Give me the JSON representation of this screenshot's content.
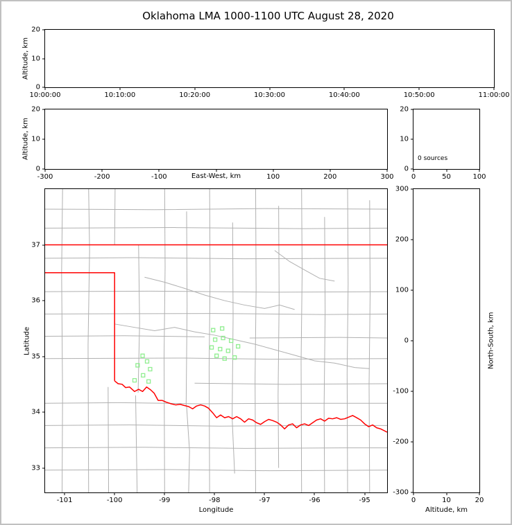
{
  "title": "Oklahoma LMA 1000-1100 UTC August 28, 2020",
  "colors": {
    "state_boundary": "#ff0000",
    "county_lines": "#b0b0b0",
    "stations": "#90ee90",
    "axes": "#000000",
    "figure_border": "#c0c0c0"
  },
  "panels": {
    "time_height": {
      "ylabel": "Altitude, km",
      "yticks": [
        "0",
        "10",
        "20"
      ],
      "xticks": [
        "10:00:00",
        "10:10:00",
        "10:20:00",
        "10:30:00",
        "10:40:00",
        "10:50:00",
        "11:00:00"
      ]
    },
    "ew_height": {
      "ylabel": "Altitude, km",
      "xlabel": "East-West, km",
      "yticks": [
        "0",
        "10",
        "20"
      ],
      "xticks": [
        "-300",
        "-200",
        "-100",
        "0",
        "100",
        "200",
        "300"
      ]
    },
    "histogram": {
      "annotation": "0 sources",
      "yticks": [
        "0",
        "10",
        "20"
      ],
      "xticks": [
        "0",
        "50",
        "100"
      ]
    },
    "map": {
      "xlabel": "Longitude",
      "ylabel": "Latitude",
      "xticks": [
        "-101",
        "-100",
        "-99",
        "-98",
        "-97",
        "-96",
        "-95"
      ],
      "yticks": [
        "33",
        "34",
        "35",
        "36",
        "37"
      ]
    },
    "ns_height": {
      "ylabel": "North-South, km",
      "xlabel": "Altitude, km",
      "yticks": [
        "-300",
        "-200",
        "-100",
        "0",
        "100",
        "200",
        "300"
      ],
      "xticks": [
        "0",
        "10",
        "20"
      ]
    }
  },
  "chart_data": [
    {
      "type": "scatter",
      "panel": "time_height",
      "ylabel": "Altitude, km",
      "ylim": [
        0,
        20
      ],
      "x_range": [
        "10:00:00",
        "11:00:00"
      ],
      "points": []
    },
    {
      "type": "scatter",
      "panel": "east_west_height",
      "xlabel": "East-West, km",
      "ylabel": "Altitude, km",
      "xlim": [
        -300,
        300
      ],
      "ylim": [
        0,
        20
      ],
      "points": []
    },
    {
      "type": "histogram",
      "panel": "source_counts",
      "xlim": [
        0,
        100
      ],
      "ylim": [
        0,
        20
      ],
      "annotation": "0 sources",
      "values": []
    },
    {
      "type": "map",
      "panel": "plan_view",
      "xlabel": "Longitude",
      "ylabel": "Latitude",
      "xlim": [
        -101.39,
        -94.55
      ],
      "ylim": [
        32.56,
        38.0
      ],
      "xticks": [
        -101,
        -100,
        -99,
        -98,
        -97,
        -96,
        -95
      ],
      "yticks": [
        33,
        34,
        35,
        36,
        37
      ],
      "stations": [
        [
          -99.44,
          35.01
        ],
        [
          -99.35,
          34.91
        ],
        [
          -99.54,
          34.84
        ],
        [
          -99.29,
          34.77
        ],
        [
          -99.43,
          34.66
        ],
        [
          -99.6,
          34.57
        ],
        [
          -99.32,
          34.55
        ],
        [
          -98.03,
          35.47
        ],
        [
          -97.85,
          35.5
        ],
        [
          -97.99,
          35.3
        ],
        [
          -97.83,
          35.33
        ],
        [
          -97.67,
          35.28
        ],
        [
          -98.06,
          35.16
        ],
        [
          -97.89,
          35.13
        ],
        [
          -97.73,
          35.1
        ],
        [
          -97.53,
          35.18
        ],
        [
          -97.96,
          35.01
        ],
        [
          -97.8,
          34.96
        ],
        [
          -97.6,
          34.98
        ]
      ],
      "state_boundary": [
        [
          [
            -101.39,
            37.0
          ],
          [
            -94.55,
            37.0
          ]
        ],
        [
          [
            -101.39,
            36.5
          ],
          [
            -100.0,
            36.5
          ],
          [
            -100.0,
            34.56
          ]
        ],
        [
          [
            -100.0,
            34.56
          ],
          [
            -99.93,
            34.51
          ],
          [
            -99.85,
            34.5
          ],
          [
            -99.78,
            34.44
          ],
          [
            -99.7,
            34.45
          ],
          [
            -99.6,
            34.37
          ],
          [
            -99.52,
            34.41
          ],
          [
            -99.44,
            34.37
          ],
          [
            -99.36,
            34.45
          ],
          [
            -99.28,
            34.4
          ],
          [
            -99.21,
            34.34
          ],
          [
            -99.13,
            34.21
          ],
          [
            -99.05,
            34.21
          ],
          [
            -98.97,
            34.18
          ],
          [
            -98.87,
            34.15
          ],
          [
            -98.78,
            34.13
          ],
          [
            -98.69,
            34.14
          ],
          [
            -98.61,
            34.12
          ],
          [
            -98.52,
            34.1
          ],
          [
            -98.44,
            34.06
          ],
          [
            -98.36,
            34.11
          ],
          [
            -98.28,
            34.13
          ],
          [
            -98.2,
            34.11
          ],
          [
            -98.12,
            34.07
          ],
          [
            -98.04,
            33.99
          ],
          [
            -97.96,
            33.9
          ],
          [
            -97.88,
            33.95
          ],
          [
            -97.8,
            33.9
          ],
          [
            -97.72,
            33.92
          ],
          [
            -97.64,
            33.88
          ],
          [
            -97.56,
            33.92
          ],
          [
            -97.48,
            33.88
          ],
          [
            -97.4,
            33.82
          ],
          [
            -97.32,
            33.88
          ],
          [
            -97.24,
            33.86
          ],
          [
            -97.16,
            33.81
          ],
          [
            -97.08,
            33.78
          ],
          [
            -97.0,
            33.83
          ],
          [
            -96.92,
            33.87
          ],
          [
            -96.84,
            33.85
          ],
          [
            -96.76,
            33.82
          ],
          [
            -96.68,
            33.77
          ],
          [
            -96.6,
            33.7
          ],
          [
            -96.52,
            33.77
          ],
          [
            -96.44,
            33.79
          ],
          [
            -96.36,
            33.72
          ],
          [
            -96.28,
            33.77
          ],
          [
            -96.2,
            33.79
          ],
          [
            -96.12,
            33.76
          ],
          [
            -96.04,
            33.81
          ],
          [
            -95.96,
            33.86
          ],
          [
            -95.88,
            33.88
          ],
          [
            -95.8,
            33.84
          ],
          [
            -95.72,
            33.89
          ],
          [
            -95.64,
            33.88
          ],
          [
            -95.56,
            33.9
          ],
          [
            -95.48,
            33.87
          ],
          [
            -95.4,
            33.88
          ],
          [
            -95.32,
            33.91
          ],
          [
            -95.24,
            33.94
          ],
          [
            -95.16,
            33.9
          ],
          [
            -95.08,
            33.86
          ],
          [
            -95.0,
            33.79
          ],
          [
            -94.92,
            33.74
          ],
          [
            -94.84,
            33.77
          ],
          [
            -94.76,
            33.72
          ],
          [
            -94.68,
            33.7
          ],
          [
            -94.55,
            33.64
          ]
        ]
      ],
      "county_lines": [
        [
          [
            -101.04,
            38.0
          ],
          [
            -101.06,
            36.5
          ],
          [
            -101.04,
            34.3
          ],
          [
            -101.05,
            32.56
          ]
        ],
        [
          [
            -100.52,
            38.0
          ],
          [
            -100.5,
            36.9
          ],
          [
            -100.53,
            35.2
          ],
          [
            -100.52,
            32.56
          ]
        ],
        [
          [
            -99.99,
            38.0
          ],
          [
            -100.0,
            37.0
          ]
        ],
        [
          [
            -100.13,
            34.45
          ],
          [
            -100.12,
            32.56
          ]
        ],
        [
          [
            -99.52,
            37.0
          ],
          [
            -99.5,
            35.6
          ],
          [
            -99.53,
            34.35
          ]
        ],
        [
          [
            -99.58,
            34.3
          ],
          [
            -99.55,
            32.56
          ]
        ],
        [
          [
            -99.0,
            38.0
          ],
          [
            -98.99,
            36.6
          ],
          [
            -99.01,
            35.0
          ],
          [
            -99.0,
            32.56
          ]
        ],
        [
          [
            -98.56,
            37.6
          ],
          [
            -98.55,
            35.9
          ],
          [
            -98.57,
            34.1
          ]
        ],
        [
          [
            -98.56,
            34.1
          ],
          [
            -98.5,
            33.3
          ],
          [
            -98.52,
            32.56
          ]
        ],
        [
          [
            -98.1,
            38.0
          ],
          [
            -98.09,
            36.4
          ],
          [
            -98.11,
            34.8
          ],
          [
            -98.1,
            32.56
          ]
        ],
        [
          [
            -97.64,
            37.4
          ],
          [
            -97.63,
            35.7
          ],
          [
            -97.65,
            33.9
          ],
          [
            -97.6,
            32.9
          ]
        ],
        [
          [
            -97.18,
            38.0
          ],
          [
            -97.17,
            36.2
          ],
          [
            -97.19,
            34.6
          ],
          [
            -97.18,
            32.56
          ]
        ],
        [
          [
            -96.72,
            37.7
          ],
          [
            -96.71,
            36.0
          ],
          [
            -96.73,
            34.3
          ],
          [
            -96.72,
            33.0
          ]
        ],
        [
          [
            -96.26,
            38.0
          ],
          [
            -96.25,
            36.5
          ],
          [
            -96.27,
            34.9
          ],
          [
            -96.26,
            32.56
          ]
        ],
        [
          [
            -95.8,
            37.5
          ],
          [
            -95.79,
            35.8
          ],
          [
            -95.81,
            34.1
          ],
          [
            -95.8,
            32.56
          ]
        ],
        [
          [
            -95.34,
            38.0
          ],
          [
            -95.33,
            36.3
          ],
          [
            -95.35,
            34.7
          ],
          [
            -95.34,
            32.56
          ]
        ],
        [
          [
            -94.9,
            37.8
          ],
          [
            -94.89,
            36.1
          ],
          [
            -94.91,
            34.5
          ],
          [
            -94.9,
            32.56
          ]
        ],
        [
          [
            -101.39,
            37.64
          ],
          [
            -99.2,
            37.63
          ],
          [
            -97.0,
            37.65
          ],
          [
            -94.55,
            37.64
          ]
        ],
        [
          [
            -101.39,
            37.3
          ],
          [
            -98.8,
            37.31
          ],
          [
            -96.2,
            37.29
          ],
          [
            -94.55,
            37.3
          ]
        ],
        [
          [
            -101.39,
            36.76
          ],
          [
            -99.6,
            36.77
          ],
          [
            -97.4,
            36.75
          ],
          [
            -94.55,
            36.76
          ]
        ],
        [
          [
            -101.39,
            36.16
          ],
          [
            -99.3,
            36.17
          ],
          [
            -96.8,
            36.15
          ],
          [
            -94.55,
            36.16
          ]
        ],
        [
          [
            -101.39,
            35.76
          ],
          [
            -98.0,
            35.77
          ],
          [
            -95.8,
            35.75
          ],
          [
            -94.55,
            35.76
          ]
        ],
        [
          [
            -101.39,
            35.36
          ],
          [
            -99.8,
            35.37
          ],
          [
            -98.2,
            35.35
          ]
        ],
        [
          [
            -97.3,
            35.33
          ],
          [
            -95.5,
            35.34
          ],
          [
            -94.55,
            35.33
          ]
        ],
        [
          [
            -101.39,
            34.96
          ],
          [
            -98.6,
            34.97
          ],
          [
            -96.9,
            34.95
          ],
          [
            -94.55,
            34.96
          ]
        ],
        [
          [
            -98.4,
            34.52
          ],
          [
            -96.6,
            34.5
          ],
          [
            -94.55,
            34.51
          ]
        ],
        [
          [
            -101.39,
            34.16
          ],
          [
            -99.9,
            34.17
          ],
          [
            -98.3,
            34.15
          ],
          [
            -96.5,
            34.16
          ],
          [
            -94.55,
            34.16
          ]
        ],
        [
          [
            -101.39,
            33.76
          ],
          [
            -99.7,
            33.77
          ],
          [
            -97.9,
            33.75
          ],
          [
            -96.1,
            33.76
          ],
          [
            -94.55,
            33.76
          ]
        ],
        [
          [
            -101.39,
            33.36
          ],
          [
            -99.4,
            33.37
          ],
          [
            -97.4,
            33.35
          ],
          [
            -95.4,
            33.36
          ],
          [
            -94.55,
            33.36
          ]
        ],
        [
          [
            -101.39,
            32.96
          ],
          [
            -99.0,
            32.97
          ],
          [
            -96.9,
            32.95
          ],
          [
            -94.55,
            32.96
          ]
        ],
        [
          [
            -100.0,
            35.58
          ],
          [
            -99.6,
            35.52
          ],
          [
            -99.2,
            35.46
          ],
          [
            -98.8,
            35.52
          ],
          [
            -98.4,
            35.44
          ],
          [
            -98.0,
            35.38
          ],
          [
            -97.6,
            35.3
          ],
          [
            -97.2,
            35.22
          ],
          [
            -96.8,
            35.12
          ],
          [
            -96.4,
            35.02
          ],
          [
            -96.0,
            34.92
          ],
          [
            -95.6,
            34.88
          ],
          [
            -95.2,
            34.8
          ],
          [
            -94.9,
            34.78
          ]
        ],
        [
          [
            -99.4,
            36.42
          ],
          [
            -99.0,
            36.33
          ],
          [
            -98.6,
            36.22
          ],
          [
            -98.2,
            36.1
          ],
          [
            -97.8,
            36.0
          ],
          [
            -97.4,
            35.92
          ],
          [
            -97.0,
            35.86
          ],
          [
            -96.7,
            35.92
          ],
          [
            -96.4,
            35.84
          ]
        ],
        [
          [
            -96.8,
            36.9
          ],
          [
            -96.5,
            36.7
          ],
          [
            -96.2,
            36.55
          ],
          [
            -95.9,
            36.4
          ],
          [
            -95.6,
            36.35
          ]
        ]
      ]
    },
    {
      "type": "scatter",
      "panel": "north_south_height",
      "xlabel": "Altitude, km",
      "ylabel": "North-South, km",
      "xlim": [
        0,
        20
      ],
      "ylim": [
        -300,
        300
      ],
      "points": []
    }
  ]
}
